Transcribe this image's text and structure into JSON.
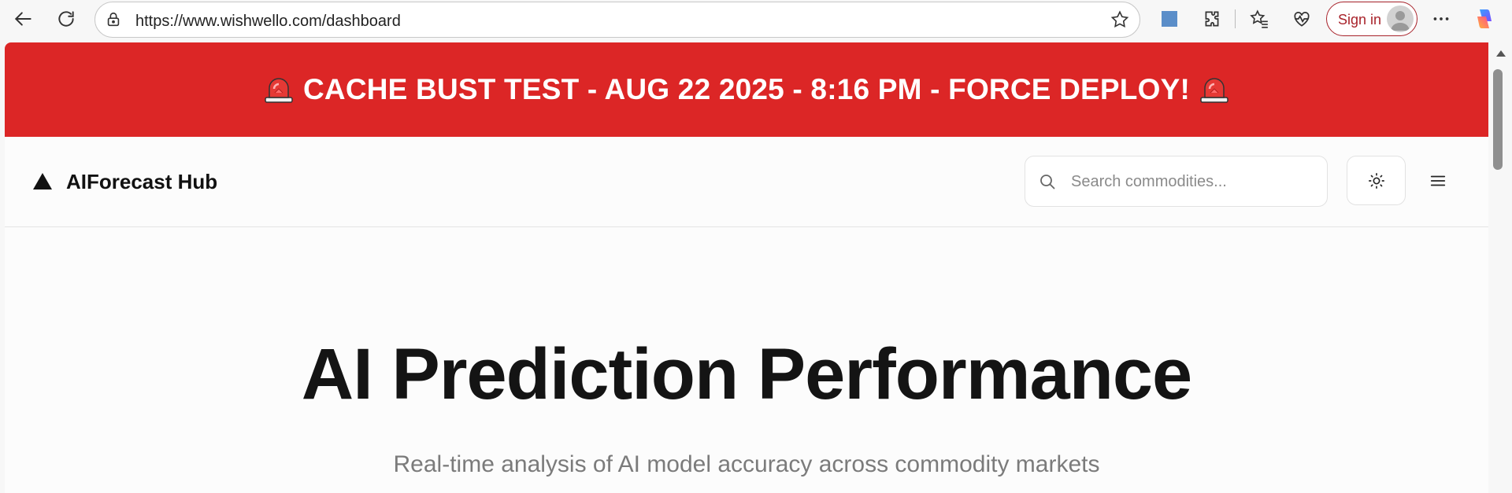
{
  "browser": {
    "url": "https://www.wishwello.com/dashboard",
    "signin_label": "Sign in"
  },
  "banner": {
    "text": "CACHE BUST TEST - AUG 22 2025 - 8:16 PM - FORCE DEPLOY!",
    "icon": "siren-icon",
    "color": "#dc2626"
  },
  "header": {
    "logo_text": "AIForecast Hub",
    "search_placeholder": "Search commodities...",
    "search_value": ""
  },
  "hero": {
    "title": "AI Prediction Performance",
    "subtitle": "Real-time analysis of AI model accuracy across commodity markets"
  },
  "colors": {
    "accent_red": "#dc2626",
    "signin_red": "#a8232b"
  }
}
